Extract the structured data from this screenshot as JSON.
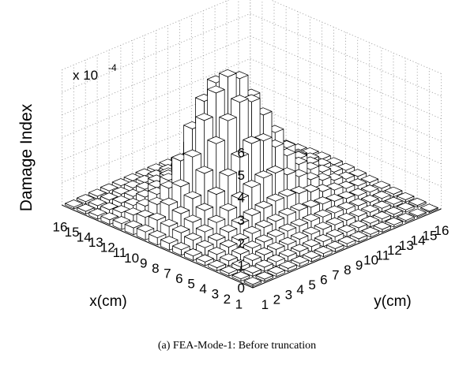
{
  "chart_data": {
    "type": "bar3d",
    "zlabel": "Damage Index",
    "zscale_label": "x 10",
    "zscale_exponent": "-4",
    "zlim": [
      0,
      6
    ],
    "z_ticks": [
      "0",
      "1",
      "2",
      "3",
      "4",
      "5",
      "6"
    ],
    "xlabel": "x(cm)",
    "ylabel": "y(cm)",
    "x_ticks": [
      "1",
      "2",
      "3",
      "4",
      "5",
      "6",
      "7",
      "8",
      "9",
      "10",
      "11",
      "12",
      "13",
      "14",
      "15",
      "16"
    ],
    "y_ticks": [
      "1",
      "2",
      "3",
      "4",
      "5",
      "6",
      "7",
      "8",
      "9",
      "10",
      "11",
      "12",
      "13",
      "14",
      "15",
      "16"
    ],
    "grid": true,
    "values_rows_y1_to_y16_cols_x1_to_x16": [
      [
        0.08,
        0.1,
        0.12,
        0.14,
        0.16,
        0.2,
        0.25,
        0.3,
        0.32,
        0.35,
        0.3,
        0.26,
        0.2,
        0.15,
        0.12,
        0.08
      ],
      [
        0.1,
        0.14,
        0.18,
        0.22,
        0.28,
        0.35,
        0.45,
        0.55,
        0.6,
        0.65,
        0.55,
        0.42,
        0.3,
        0.2,
        0.15,
        0.1
      ],
      [
        0.12,
        0.18,
        0.25,
        0.3,
        0.38,
        0.45,
        0.6,
        0.8,
        0.95,
        1.1,
        0.9,
        0.6,
        0.4,
        0.28,
        0.18,
        0.12
      ],
      [
        0.14,
        0.2,
        0.28,
        0.35,
        0.45,
        0.6,
        0.8,
        1.1,
        1.4,
        1.7,
        1.4,
        0.9,
        0.55,
        0.35,
        0.22,
        0.14
      ],
      [
        0.14,
        0.22,
        0.3,
        0.4,
        0.55,
        0.75,
        1.1,
        1.6,
        2.3,
        2.8,
        2.4,
        1.3,
        0.75,
        0.45,
        0.28,
        0.15
      ],
      [
        0.14,
        0.22,
        0.3,
        0.42,
        0.6,
        0.9,
        1.4,
        2.2,
        3.4,
        4.2,
        3.6,
        1.9,
        1.0,
        0.55,
        0.3,
        0.15
      ],
      [
        0.14,
        0.22,
        0.32,
        0.45,
        0.65,
        1.0,
        1.7,
        2.8,
        4.2,
        5.2,
        4.6,
        2.4,
        1.2,
        0.65,
        0.32,
        0.15
      ],
      [
        0.14,
        0.22,
        0.32,
        0.45,
        0.7,
        1.1,
        1.9,
        3.2,
        4.8,
        5.7,
        5.2,
        2.8,
        1.4,
        0.7,
        0.35,
        0.15
      ],
      [
        0.14,
        0.22,
        0.32,
        0.45,
        0.7,
        1.1,
        1.9,
        3.1,
        4.6,
        5.4,
        4.9,
        2.6,
        1.3,
        0.65,
        0.32,
        0.14
      ],
      [
        0.14,
        0.2,
        0.3,
        0.42,
        0.62,
        1.0,
        1.6,
        2.6,
        3.8,
        4.4,
        4.0,
        2.1,
        1.1,
        0.55,
        0.3,
        0.14
      ],
      [
        0.12,
        0.18,
        0.28,
        0.38,
        0.55,
        0.85,
        1.3,
        2.0,
        2.8,
        3.2,
        2.9,
        1.6,
        0.85,
        0.45,
        0.25,
        0.12
      ],
      [
        0.12,
        0.16,
        0.24,
        0.32,
        0.45,
        0.65,
        0.95,
        1.4,
        1.9,
        2.1,
        1.9,
        1.1,
        0.6,
        0.35,
        0.2,
        0.1
      ],
      [
        0.1,
        0.14,
        0.2,
        0.26,
        0.35,
        0.5,
        0.7,
        0.95,
        1.2,
        1.3,
        1.2,
        0.75,
        0.45,
        0.25,
        0.15,
        0.08
      ],
      [
        0.08,
        0.12,
        0.16,
        0.2,
        0.26,
        0.35,
        0.48,
        0.62,
        0.75,
        0.8,
        0.72,
        0.48,
        0.3,
        0.18,
        0.12,
        0.06
      ],
      [
        0.06,
        0.1,
        0.12,
        0.15,
        0.2,
        0.25,
        0.32,
        0.4,
        0.45,
        0.48,
        0.42,
        0.3,
        0.2,
        0.12,
        0.08,
        0.05
      ],
      [
        0.05,
        0.08,
        0.1,
        0.12,
        0.15,
        0.18,
        0.22,
        0.26,
        0.28,
        0.3,
        0.26,
        0.2,
        0.14,
        0.1,
        0.06,
        0.04
      ]
    ]
  },
  "caption": "(a) FEA-Mode-1:  Before truncation"
}
